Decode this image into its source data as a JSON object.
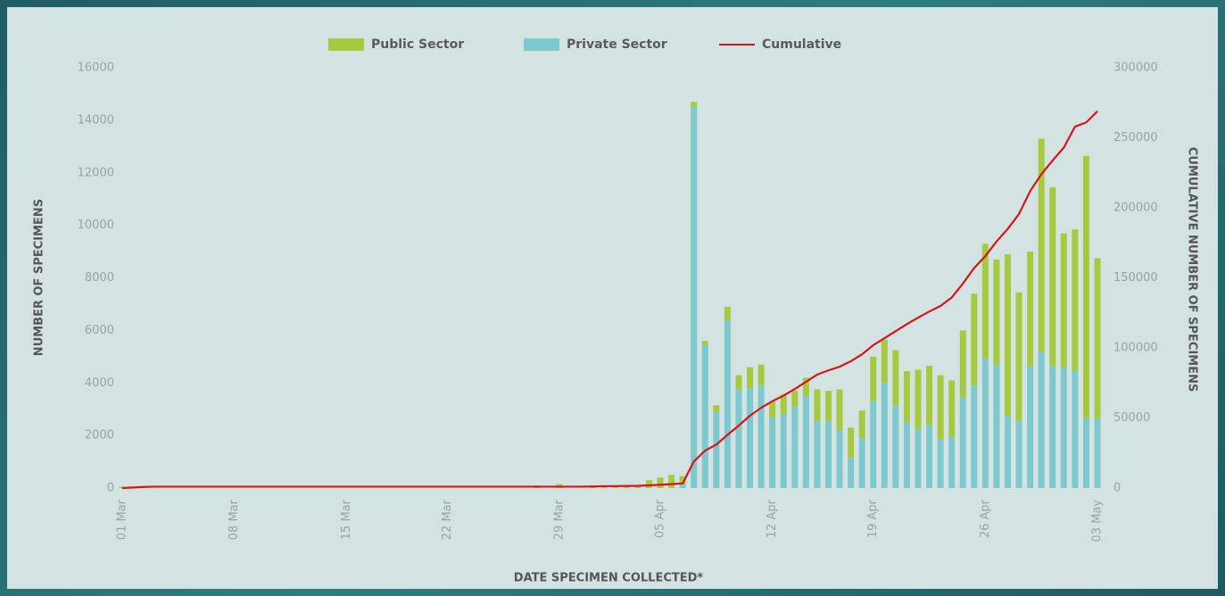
{
  "chart_data": {
    "type": "bar",
    "stacked": true,
    "categories": [
      "01 Mar",
      null,
      null,
      null,
      null,
      null,
      null,
      null,
      null,
      null,
      "08 Mar",
      null,
      null,
      null,
      null,
      null,
      null,
      null,
      null,
      null,
      "15 Mar",
      null,
      null,
      null,
      null,
      null,
      null,
      null,
      null,
      "22 Mar",
      null,
      null,
      null,
      null,
      null,
      null,
      null,
      null,
      null,
      "29 Mar",
      null,
      null,
      null,
      null,
      null,
      null,
      null,
      null,
      "05 Apr",
      null,
      null,
      null,
      null,
      null,
      null,
      null,
      null,
      null,
      "12 Apr",
      null,
      null,
      null,
      null,
      null,
      null,
      null,
      null,
      "19 Apr",
      null,
      null,
      null,
      null,
      null,
      null,
      null,
      null,
      null,
      "26 Apr",
      null,
      null,
      null,
      null,
      null,
      null,
      null,
      null,
      null,
      "03 May"
    ],
    "series": [
      {
        "name": "Public Sector",
        "color": "#a7c940",
        "values": [
          50,
          0,
          0,
          0,
          0,
          0,
          0,
          0,
          0,
          0,
          0,
          0,
          0,
          0,
          0,
          0,
          0,
          0,
          0,
          0,
          0,
          0,
          0,
          0,
          0,
          0,
          0,
          0,
          0,
          0,
          0,
          0,
          0,
          0,
          0,
          0,
          0,
          100,
          0,
          150,
          0,
          0,
          60,
          60,
          80,
          80,
          100,
          300,
          400,
          500,
          300,
          200,
          150,
          250,
          500,
          550,
          800,
          800,
          600,
          750,
          600,
          700,
          1200,
          1150,
          1550,
          1150,
          1050,
          1700,
          1650,
          2100,
          1950,
          2250,
          2250,
          2450,
          2150,
          2550,
          3500,
          4350,
          4000,
          6150,
          4900,
          4350,
          8100,
          6800,
          5100,
          5400,
          10000,
          6100
        ]
      },
      {
        "name": "Private Sector",
        "color": "#7ec8d0",
        "values": [
          0,
          0,
          0,
          0,
          0,
          0,
          0,
          0,
          0,
          0,
          0,
          0,
          0,
          0,
          0,
          0,
          0,
          0,
          0,
          0,
          0,
          0,
          0,
          0,
          0,
          0,
          0,
          0,
          0,
          0,
          0,
          0,
          0,
          0,
          0,
          0,
          0,
          0,
          0,
          0,
          0,
          0,
          0,
          0,
          0,
          0,
          0,
          0,
          0,
          0,
          150,
          14500,
          5450,
          2900,
          6400,
          3750,
          3800,
          3900,
          2700,
          2800,
          3100,
          3500,
          2550,
          2550,
          2200,
          1150,
          1900,
          3300,
          4000,
          3150,
          2500,
          2250,
          2400,
          1850,
          1950,
          3450,
          3900,
          4950,
          4700,
          2750,
          2550,
          4650,
          5200,
          4650,
          4600,
          4450,
          2650,
          2650
        ]
      },
      {
        "name": "Cumulative",
        "color": "#d7141c",
        "type": "line",
        "axis": "y2",
        "values": [
          0,
          400,
          800,
          1000,
          1000,
          1000,
          1000,
          1000,
          1000,
          1000,
          1000,
          1000,
          1000,
          1000,
          1000,
          1000,
          1000,
          1000,
          1000,
          1000,
          1000,
          1000,
          1000,
          1000,
          1000,
          1000,
          1000,
          1000,
          1000,
          1000,
          1000,
          1000,
          1000,
          1000,
          1000,
          1000,
          1000,
          1000,
          1000,
          1000,
          1000,
          1000,
          1100,
          1300,
          1400,
          1500,
          1600,
          1900,
          2300,
          2800,
          3300,
          19000,
          26700,
          31000,
          38000,
          44600,
          51600,
          57300,
          62000,
          66000,
          70700,
          75800,
          81000,
          84000,
          86600,
          90500,
          95500,
          102000,
          107000,
          112000,
          117000,
          121600,
          126000,
          130000,
          136000,
          146000,
          157000,
          165600,
          176000,
          185000,
          195600,
          212000,
          224000,
          233800,
          243000,
          258000,
          261000,
          269000
        ]
      }
    ],
    "ylim": [
      0,
      16000
    ],
    "yticks": [
      0,
      2000,
      4000,
      6000,
      8000,
      10000,
      12000,
      14000,
      16000
    ],
    "y2lim": [
      0,
      300000
    ],
    "y2ticks": [
      0,
      50000,
      100000,
      150000,
      200000,
      250000,
      300000
    ],
    "ylabel": "NUMBER OF SPECIMENS",
    "y2label": "CUMULATIVE NUMBER OF SPECIMENS",
    "xlabel": "DATE SPECIMEN COLLECTED*",
    "legend": "top"
  }
}
